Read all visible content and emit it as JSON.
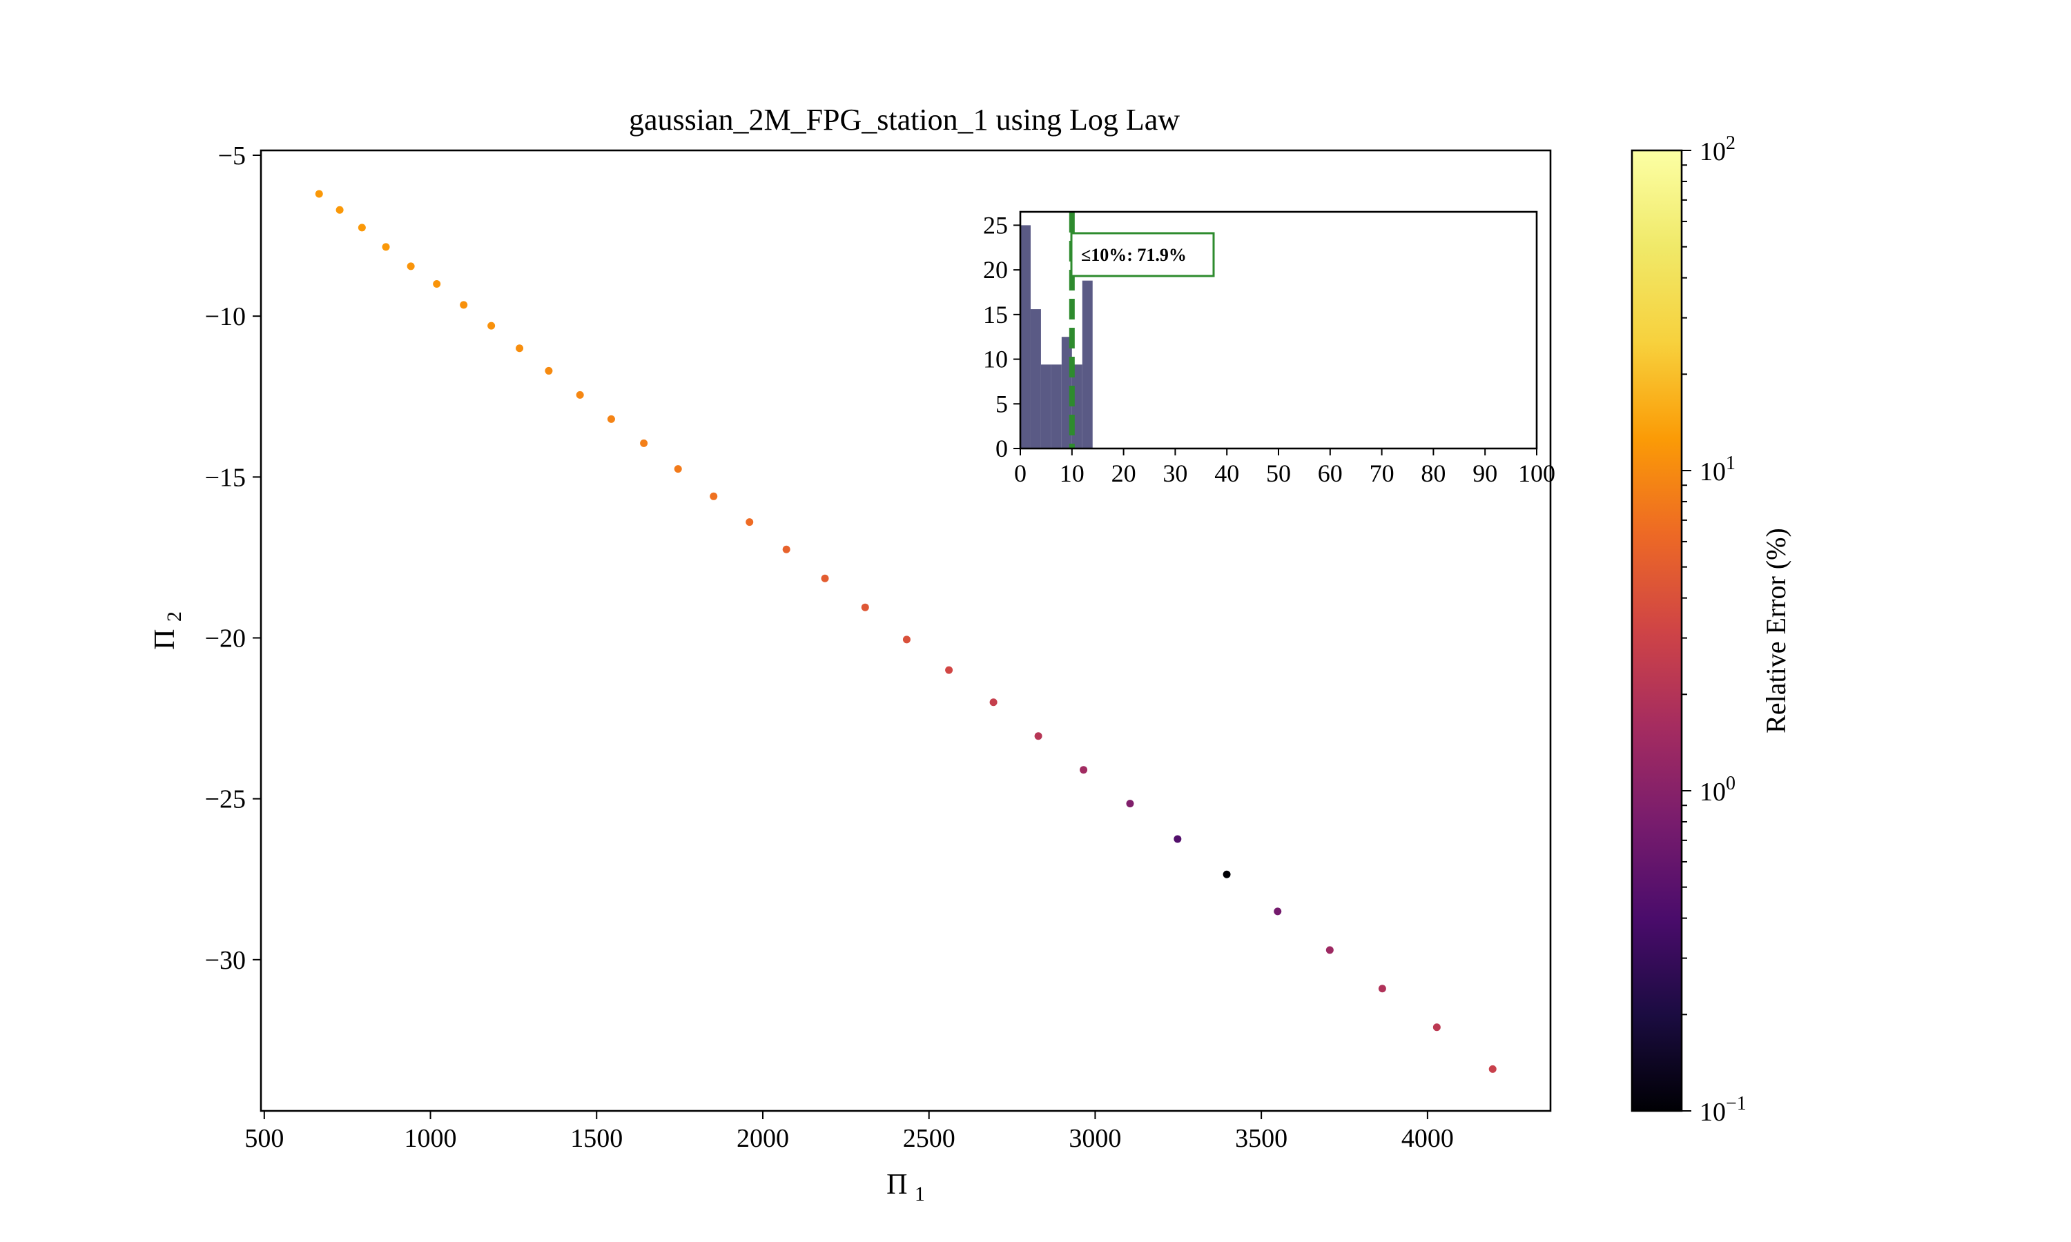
{
  "chart_data": [
    {
      "type": "scatter",
      "title": "gaussian_2M_FPG_station_1 using Log Law",
      "xlabel": "Π1",
      "ylabel": "Π2",
      "xlim": [
        490,
        4370
      ],
      "ylim": [
        -34.7,
        -4.85
      ],
      "xticks": [
        500,
        1000,
        1500,
        2000,
        2500,
        3000,
        3500,
        4000
      ],
      "yticks": [
        -5,
        -10,
        -15,
        -20,
        -25,
        -30
      ],
      "grid": false,
      "color_encoding": "relative error (%)",
      "points": [
        {
          "x": 665,
          "y": -6.2,
          "err": 12
        },
        {
          "x": 727,
          "y": -6.7,
          "err": 12
        },
        {
          "x": 794,
          "y": -7.25,
          "err": 12
        },
        {
          "x": 866,
          "y": -7.85,
          "err": 12
        },
        {
          "x": 941,
          "y": -8.45,
          "err": 11.5
        },
        {
          "x": 1019,
          "y": -9.0,
          "err": 11.5
        },
        {
          "x": 1100,
          "y": -9.65,
          "err": 11
        },
        {
          "x": 1183,
          "y": -10.3,
          "err": 11
        },
        {
          "x": 1268,
          "y": -11.0,
          "err": 10.5
        },
        {
          "x": 1356,
          "y": -11.7,
          "err": 10
        },
        {
          "x": 1450,
          "y": -12.45,
          "err": 9.5
        },
        {
          "x": 1544,
          "y": -13.2,
          "err": 9
        },
        {
          "x": 1642,
          "y": -13.95,
          "err": 8.5
        },
        {
          "x": 1745,
          "y": -14.75,
          "err": 8
        },
        {
          "x": 1852,
          "y": -15.6,
          "err": 7
        },
        {
          "x": 1960,
          "y": -16.4,
          "err": 6.5
        },
        {
          "x": 2071,
          "y": -17.25,
          "err": 5.5
        },
        {
          "x": 2187,
          "y": -18.15,
          "err": 5
        },
        {
          "x": 2308,
          "y": -19.05,
          "err": 4.5
        },
        {
          "x": 2433,
          "y": -20.05,
          "err": 4
        },
        {
          "x": 2560,
          "y": -21.0,
          "err": 3.3
        },
        {
          "x": 2694,
          "y": -22.0,
          "err": 2.7
        },
        {
          "x": 2829,
          "y": -23.05,
          "err": 2.1
        },
        {
          "x": 2965,
          "y": -24.1,
          "err": 1.5
        },
        {
          "x": 3105,
          "y": -25.15,
          "err": 0.9
        },
        {
          "x": 3248,
          "y": -26.25,
          "err": 0.45
        },
        {
          "x": 3396,
          "y": -27.35,
          "err": 0.1
        },
        {
          "x": 3549,
          "y": -28.5,
          "err": 0.75
        },
        {
          "x": 3706,
          "y": -29.7,
          "err": 1.4
        },
        {
          "x": 3864,
          "y": -30.9,
          "err": 1.9
        },
        {
          "x": 4028,
          "y": -32.1,
          "err": 2.3
        },
        {
          "x": 4196,
          "y": -33.4,
          "err": 2.8
        }
      ]
    },
    {
      "type": "bar",
      "subtype": "histogram",
      "xlim": [
        0,
        100
      ],
      "ylim": [
        0,
        26.5
      ],
      "xticks": [
        0,
        10,
        20,
        30,
        40,
        50,
        60,
        70,
        80,
        90,
        100
      ],
      "yticks": [
        0,
        5,
        10,
        15,
        20,
        25
      ],
      "bin_edges": [
        0,
        2,
        4,
        6,
        8,
        10,
        12,
        14
      ],
      "values": [
        25,
        15.6,
        9.4,
        9.4,
        12.5,
        9.4,
        18.8
      ],
      "bar_color": "#5a5a85",
      "threshold": 10,
      "threshold_color": "#2e8b2e",
      "annotation": "≤10%: 71.9%"
    },
    {
      "type": "colorbar",
      "label": "Relative Error (%)",
      "scale": "log",
      "range": [
        0.1,
        100
      ],
      "colormap": "inferno",
      "tick_labels": [
        {
          "value": 100,
          "base": "10",
          "exp": "2"
        },
        {
          "value": 10,
          "base": "10",
          "exp": "1"
        },
        {
          "value": 1,
          "base": "10",
          "exp": "0"
        },
        {
          "value": 0.1,
          "base": "10",
          "exp": "−1"
        }
      ]
    }
  ]
}
